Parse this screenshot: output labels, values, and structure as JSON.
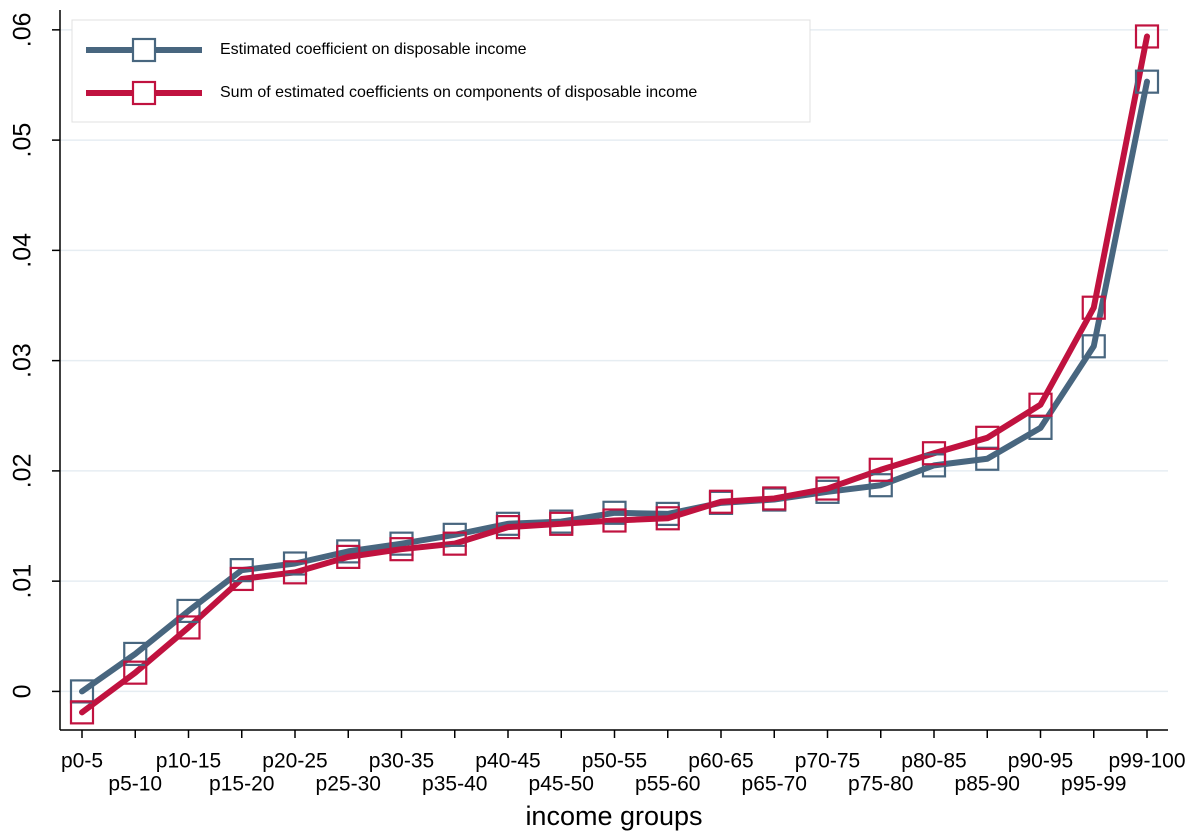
{
  "chart_data": {
    "type": "line",
    "x_label": "income groups",
    "categories": [
      "p0-5",
      "p5-10",
      "p10-15",
      "p15-20",
      "p20-25",
      "p25-30",
      "p30-35",
      "p35-40",
      "p40-45",
      "p45-50",
      "p50-55",
      "p55-60",
      "p60-65",
      "p65-70",
      "p70-75",
      "p75-80",
      "p80-85",
      "p85-90",
      "p90-95",
      "p95-99",
      "p99-100"
    ],
    "series": [
      {
        "name": "Estimated coefficient on disposable income",
        "color": "#48667f",
        "values": [
          0.0,
          0.0034,
          0.0073,
          0.011,
          0.0116,
          0.0127,
          0.0134,
          0.0142,
          0.0152,
          0.0154,
          0.0162,
          0.0161,
          0.0171,
          0.0174,
          0.0181,
          0.0187,
          0.0205,
          0.0211,
          0.0239,
          0.0313,
          0.0553
        ]
      },
      {
        "name": "Sum of estimated coefficients on components of disposable income",
        "color": "#c0123f",
        "values": [
          -0.0019,
          0.0017,
          0.0058,
          0.0102,
          0.0108,
          0.0122,
          0.0129,
          0.0134,
          0.0149,
          0.0152,
          0.0155,
          0.0157,
          0.0172,
          0.0175,
          0.0184,
          0.0201,
          0.0216,
          0.023,
          0.026,
          0.0348,
          0.0594
        ]
      }
    ],
    "ylim": [
      -0.0035,
      0.0618
    ],
    "yticks": [
      0,
      {
        "value": 0.01,
        "label": ".01"
      },
      {
        "value": 0.02,
        "label": ".02"
      },
      {
        "value": 0.03,
        "label": ".03"
      },
      {
        "value": 0.04,
        "label": ".04"
      },
      {
        "value": 0.05,
        "label": ".05"
      },
      {
        "value": 0.06,
        "label": ".06"
      }
    ],
    "grid": true,
    "legend": "top-left"
  }
}
